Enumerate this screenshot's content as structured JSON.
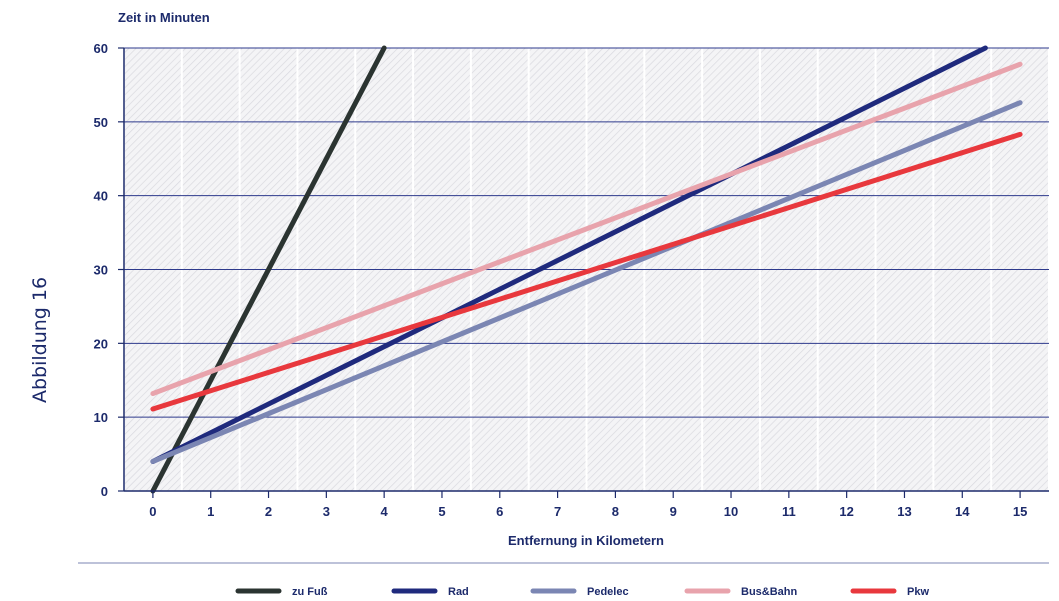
{
  "figure_label": "Abbildung 16",
  "chart_data": {
    "type": "line",
    "ylabel": "Zeit in Minuten",
    "xlabel": "Entfernung in Kilometern",
    "xlim": [
      -0.5,
      15.5
    ],
    "ylim": [
      0,
      60
    ],
    "x_ticks": [
      "0",
      "1",
      "2",
      "3",
      "4",
      "5",
      "6",
      "7",
      "8",
      "9",
      "10",
      "11",
      "12",
      "13",
      "14",
      "15"
    ],
    "y_ticks": [
      "0",
      "10",
      "20",
      "30",
      "40",
      "50",
      "60"
    ],
    "grid": true,
    "legend_position": "bottom",
    "series": [
      {
        "name": "zu Fuß",
        "color": "#2b3431",
        "x": [
          0,
          4.0
        ],
        "y": [
          0,
          60
        ]
      },
      {
        "name": "Rad",
        "color": "#1f2a7d",
        "x": [
          0,
          14.4
        ],
        "y": [
          4,
          60
        ]
      },
      {
        "name": "Pedelec",
        "color": "#7b86b3",
        "x": [
          0,
          15
        ],
        "y": [
          4,
          52.6
        ]
      },
      {
        "name": "Bus&Bahn",
        "color": "#e8a3ac",
        "x": [
          0,
          15
        ],
        "y": [
          13.2,
          57.8
        ]
      },
      {
        "name": "Pkw",
        "color": "#e8383d",
        "x": [
          0,
          15
        ],
        "y": [
          11.1,
          48.3
        ]
      }
    ]
  }
}
